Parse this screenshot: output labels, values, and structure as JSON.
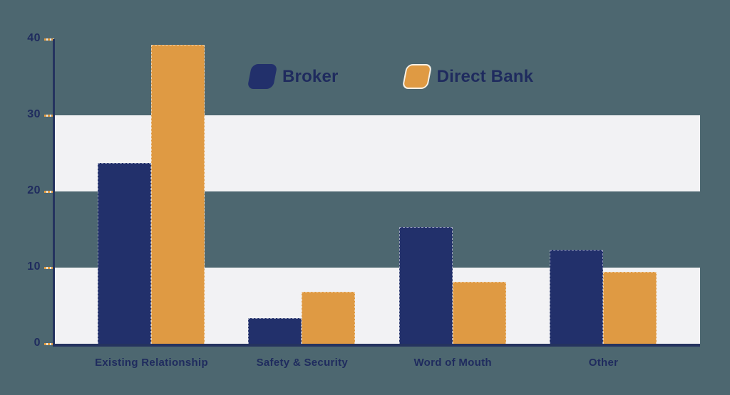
{
  "chart_data": {
    "type": "bar",
    "title": "",
    "xlabel": "",
    "ylabel": "",
    "categories": [
      "Existing Relationship",
      "Safety & Security",
      "Word of Mouth",
      "Other"
    ],
    "series": [
      {
        "name": "Broker",
        "color": "#22306b",
        "values": [
          23.7,
          3.4,
          15.3,
          12.3
        ]
      },
      {
        "name": "Direct Bank",
        "color": "#df9a43",
        "values": [
          39.3,
          6.8,
          8.1,
          9.4
        ]
      }
    ],
    "ylim": [
      0,
      40
    ],
    "yticks": [
      0,
      10,
      20,
      30,
      40
    ],
    "bands": [
      [
        20,
        30
      ],
      [
        0,
        10
      ]
    ],
    "grid": "horizontal-bands",
    "legend_position": "top-center"
  },
  "colors": {
    "background": "#4d6770",
    "band": "#f2f2f4",
    "axis": "#25335f",
    "text": "#1f2b5e",
    "tick": "#e09c44",
    "broker": "#22306b",
    "direct_bank": "#df9a43"
  }
}
